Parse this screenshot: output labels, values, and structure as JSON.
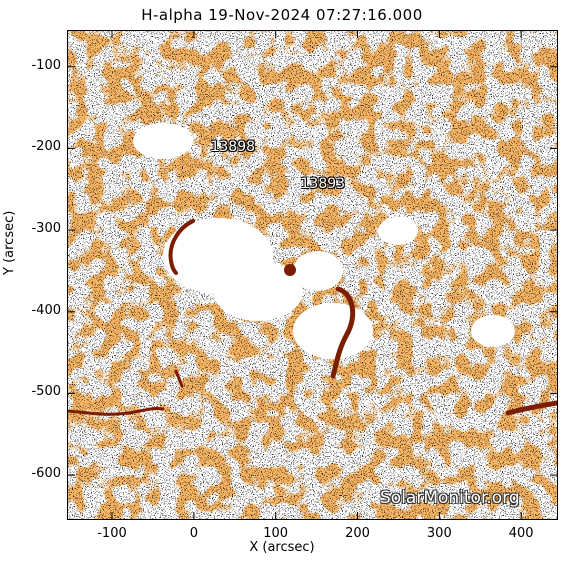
{
  "title": "H-alpha 19-Nov-2024 07:27:16.000",
  "x_axis": {
    "label": "X (arcsec)",
    "ticks": [
      {
        "label": "-100",
        "value": -100
      },
      {
        "label": "0",
        "value": 0
      },
      {
        "label": "100",
        "value": 100
      },
      {
        "label": "200",
        "value": 200
      },
      {
        "label": "300",
        "value": 300
      },
      {
        "label": "400",
        "value": 400
      }
    ],
    "range": [
      -155,
      445
    ]
  },
  "y_axis": {
    "label": "Y (arcsec)",
    "ticks": [
      {
        "label": "-100",
        "value": -100
      },
      {
        "label": "-200",
        "value": -200
      },
      {
        "label": "-300",
        "value": -300
      },
      {
        "label": "-400",
        "value": -400
      },
      {
        "label": "-500",
        "value": -500
      },
      {
        "label": "-600",
        "value": -600
      }
    ],
    "range": [
      -655,
      -55
    ]
  },
  "active_regions": [
    {
      "label": "13898",
      "x": 35,
      "y": -200
    },
    {
      "label": "13893",
      "x": 145,
      "y": -245
    }
  ],
  "watermark": "SolarMonitor.org",
  "colors": {
    "background": "#ffffff",
    "texture": "#f07820",
    "dark_filament": "#7a1d00",
    "speckle": "#000000"
  }
}
